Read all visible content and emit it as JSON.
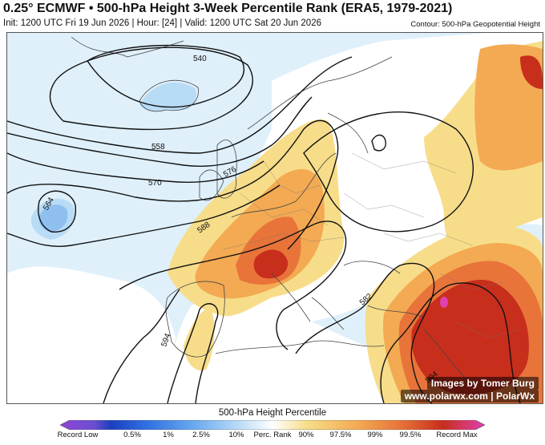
{
  "header": {
    "title": "0.25° ECMWF • 500-hPa Height 3-Week Percentile Rank (ERA5, 1979-2021)",
    "subtitle": "Init: 1200 UTC Fri 19 Jun 2026 | Hour: [24] | Valid: 1200 UTC Sat 20 Jun 2026",
    "contour_note": "Contour: 500-hPa Geopotential Height"
  },
  "contours": {
    "labels": [
      "540",
      "558",
      "570",
      "576",
      "588",
      "594",
      "564",
      "582",
      "594"
    ]
  },
  "credits": {
    "line1": "Images by Tomer Burg",
    "line2": "www.polarwx.com | PolarWx"
  },
  "legend": {
    "title": "500-hPa Height Percentile",
    "ticks": [
      "Record Low",
      "0.5%",
      "1%",
      "2.5%",
      "10%",
      "Perc. Rank",
      "90%",
      "97.5%",
      "99%",
      "99.5%",
      "Record Max"
    ],
    "colors": [
      "#8e44d6",
      "#1b3fbf",
      "#2f6ee0",
      "#5fa1ee",
      "#b9dcf6",
      "#ffffff",
      "#f7dd8a",
      "#f3aa52",
      "#e8743a",
      "#c82e1c",
      "#e040b0"
    ]
  }
}
